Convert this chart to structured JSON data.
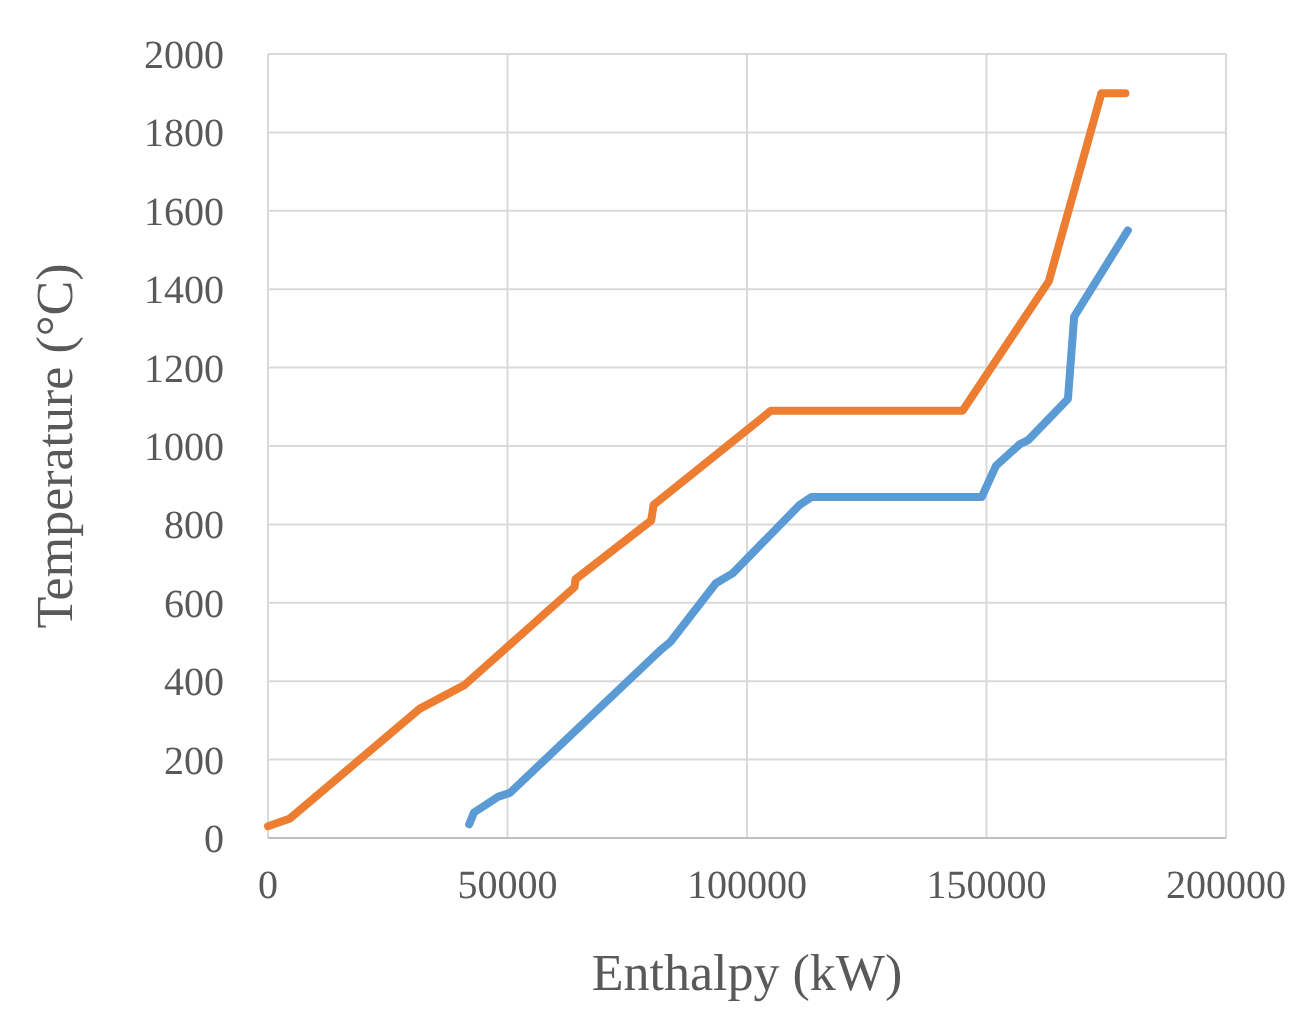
{
  "chart_data": {
    "type": "line",
    "xlabel": "Enthalpy (kW)",
    "ylabel": "Temperature (°C)",
    "xlim": [
      0,
      200000
    ],
    "xticks": [
      0,
      50000,
      100000,
      150000,
      200000
    ],
    "ylim": [
      0,
      2000
    ],
    "yticks": [
      0,
      200,
      400,
      600,
      800,
      1000,
      1200,
      1400,
      1600,
      1800,
      2000
    ],
    "grid": true,
    "marker": "none",
    "line_style": "solid",
    "series": [
      {
        "color": "#ed7d31",
        "x": [
          0,
          4600,
          31700,
          41000,
          64000,
          64200,
          80000,
          80500,
          105000,
          145000,
          163000,
          174000,
          179000
        ],
        "values": [
          30,
          50,
          330,
          390,
          640,
          660,
          810,
          850,
          1090,
          1090,
          1420,
          1900,
          1900
        ]
      },
      {
        "color": "#5b9bd5",
        "x": [
          42000,
          43000,
          48000,
          50500,
          82000,
          84000,
          93500,
          97000,
          111000,
          113500,
          149000,
          152000,
          157000,
          158700,
          167000,
          168300,
          179500
        ],
        "values": [
          35,
          65,
          105,
          115,
          480,
          500,
          650,
          675,
          850,
          870,
          870,
          950,
          1005,
          1015,
          1120,
          1330,
          1550
        ]
      }
    ]
  }
}
